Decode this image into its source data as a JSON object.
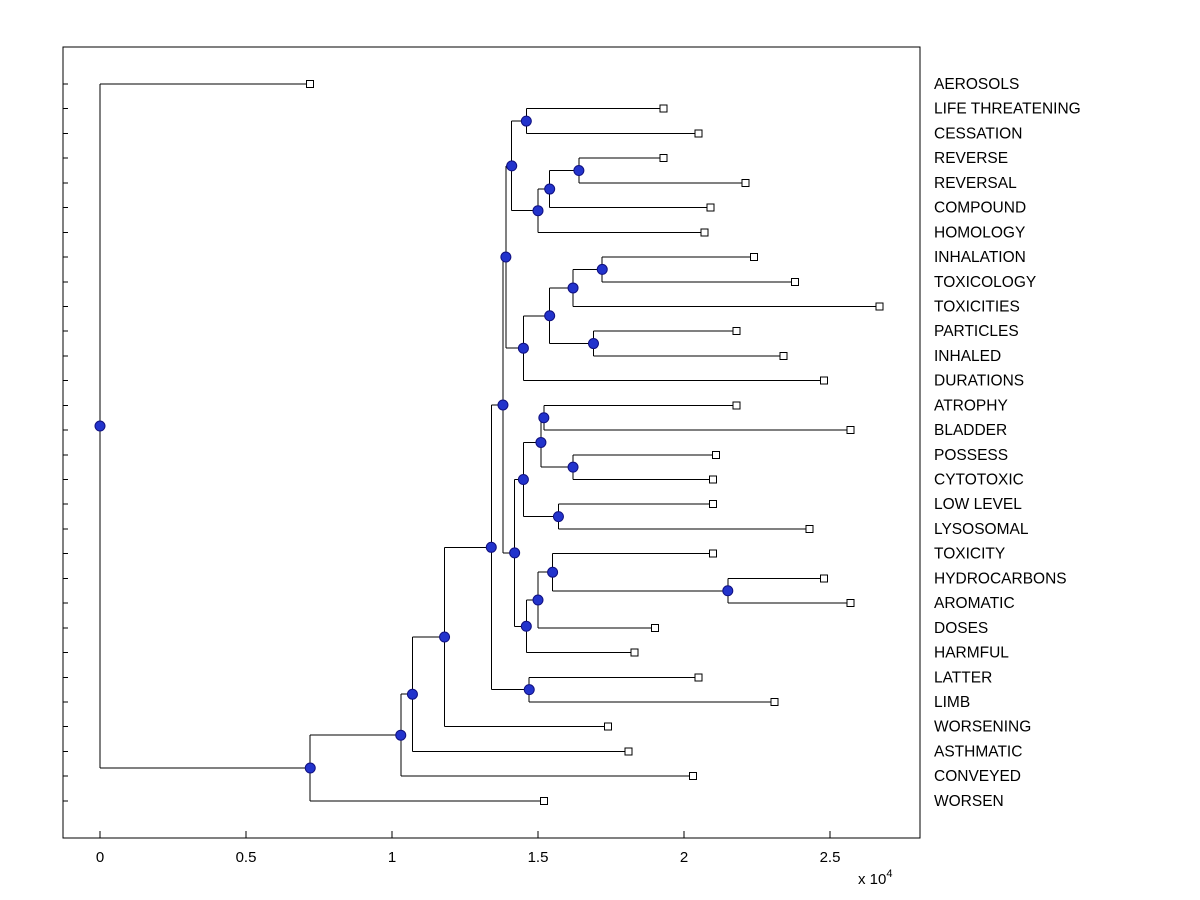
{
  "chart_data": {
    "type": "dendrogram",
    "title": "",
    "x_axis": {
      "tick_values": [
        0,
        0.5,
        1,
        1.5,
        2,
        2.5
      ],
      "tick_labels": [
        "0",
        "0.5",
        "1",
        "1.5",
        "2",
        "2.5"
      ],
      "multiplier_label": "x 10",
      "multiplier_exponent": "4",
      "range": [
        -0.13,
        2.81
      ]
    },
    "leaf_order": [
      "AEROSOLS",
      "LIFE THREATENING",
      "CESSATION",
      "REVERSE",
      "REVERSAL",
      "COMPOUND",
      "HOMOLOGY",
      "INHALATION",
      "TOXICOLOGY",
      "TOXICITIES",
      "PARTICLES",
      "INHALED",
      "DURATIONS",
      "ATROPHY",
      "BLADDER",
      "POSSESS",
      "CYTOTOXIC",
      "LOW LEVEL",
      "LYSOSOMAL",
      "TOXICITY",
      "HYDROCARBONS",
      "AROMATIC",
      "DOSES",
      "HARMFUL",
      "LATTER",
      "LIMB",
      "WORSENING",
      "ASTHMATIC",
      "CONVEYED",
      "WORSEN"
    ],
    "tree": {
      "x": 0.0,
      "children": [
        {
          "name": "AEROSOLS",
          "x": 0.72
        },
        {
          "x": 0.72,
          "children": [
            {
              "x": 1.03,
              "children": [
                {
                  "x": 1.07,
                  "children": [
                    {
                      "x": 1.18,
                      "children": [
                        {
                          "x": 1.34,
                          "children": [
                            {
                              "x": 1.38,
                              "children": [
                                {
                                  "x": 1.39,
                                  "children": [
                                    {
                                      "x": 1.41,
                                      "children": [
                                        {
                                          "x": 1.46,
                                          "children": [
                                            {
                                              "name": "LIFE THREATENING",
                                              "x": 1.93
                                            },
                                            {
                                              "name": "CESSATION",
                                              "x": 2.05
                                            }
                                          ]
                                        },
                                        {
                                          "x": 1.5,
                                          "children": [
                                            {
                                              "x": 1.54,
                                              "children": [
                                                {
                                                  "x": 1.64,
                                                  "children": [
                                                    {
                                                      "name": "REVERSE",
                                                      "x": 1.93
                                                    },
                                                    {
                                                      "name": "REVERSAL",
                                                      "x": 2.21
                                                    }
                                                  ]
                                                },
                                                {
                                                  "name": "COMPOUND",
                                                  "x": 2.09
                                                }
                                              ]
                                            },
                                            {
                                              "name": "HOMOLOGY",
                                              "x": 2.07
                                            }
                                          ]
                                        }
                                      ]
                                    },
                                    {
                                      "x": 1.45,
                                      "children": [
                                        {
                                          "x": 1.54,
                                          "children": [
                                            {
                                              "x": 1.62,
                                              "children": [
                                                {
                                                  "x": 1.72,
                                                  "children": [
                                                    {
                                                      "name": "INHALATION",
                                                      "x": 2.24
                                                    },
                                                    {
                                                      "name": "TOXICOLOGY",
                                                      "x": 2.38
                                                    }
                                                  ]
                                                },
                                                {
                                                  "name": "TOXICITIES",
                                                  "x": 2.67
                                                }
                                              ]
                                            },
                                            {
                                              "x": 1.69,
                                              "children": [
                                                {
                                                  "name": "PARTICLES",
                                                  "x": 2.18
                                                },
                                                {
                                                  "name": "INHALED",
                                                  "x": 2.34
                                                }
                                              ]
                                            }
                                          ]
                                        },
                                        {
                                          "name": "DURATIONS",
                                          "x": 2.48
                                        }
                                      ]
                                    }
                                  ]
                                },
                                {
                                  "x": 1.42,
                                  "children": [
                                    {
                                      "x": 1.45,
                                      "children": [
                                        {
                                          "x": 1.51,
                                          "children": [
                                            {
                                              "x": 1.52,
                                              "children": [
                                                {
                                                  "name": "ATROPHY",
                                                  "x": 2.18
                                                },
                                                {
                                                  "name": "BLADDER",
                                                  "x": 2.57
                                                }
                                              ]
                                            },
                                            {
                                              "x": 1.62,
                                              "children": [
                                                {
                                                  "name": "POSSESS",
                                                  "x": 2.11
                                                },
                                                {
                                                  "name": "CYTOTOXIC",
                                                  "x": 2.1
                                                }
                                              ]
                                            }
                                          ]
                                        },
                                        {
                                          "x": 1.57,
                                          "children": [
                                            {
                                              "name": "LOW LEVEL",
                                              "x": 2.1
                                            },
                                            {
                                              "name": "LYSOSOMAL",
                                              "x": 2.43
                                            }
                                          ]
                                        }
                                      ]
                                    },
                                    {
                                      "x": 1.46,
                                      "children": [
                                        {
                                          "x": 1.5,
                                          "children": [
                                            {
                                              "x": 1.55,
                                              "children": [
                                                {
                                                  "name": "TOXICITY",
                                                  "x": 2.1
                                                },
                                                {
                                                  "x": 2.15,
                                                  "children": [
                                                    {
                                                      "name": "HYDROCARBONS",
                                                      "x": 2.48
                                                    },
                                                    {
                                                      "name": "AROMATIC",
                                                      "x": 2.57
                                                    }
                                                  ]
                                                }
                                              ]
                                            },
                                            {
                                              "name": "DOSES",
                                              "x": 1.9
                                            }
                                          ]
                                        },
                                        {
                                          "name": "HARMFUL",
                                          "x": 1.83
                                        }
                                      ]
                                    }
                                  ]
                                }
                              ]
                            },
                            {
                              "x": 1.47,
                              "children": [
                                {
                                  "name": "LATTER",
                                  "x": 2.05
                                },
                                {
                                  "name": "LIMB",
                                  "x": 2.31
                                }
                              ]
                            }
                          ]
                        },
                        {
                          "name": "WORSENING",
                          "x": 1.74
                        }
                      ]
                    },
                    {
                      "name": "ASTHMATIC",
                      "x": 1.81
                    }
                  ]
                },
                {
                  "name": "CONVEYED",
                  "x": 2.03
                }
              ]
            },
            {
              "name": "WORSEN",
              "x": 1.52
            }
          ]
        }
      ]
    }
  },
  "style": {
    "node_color": "#2233cc",
    "node_edge_color": "#101080",
    "leaf_marker_fill": "#ffffff",
    "line_color": "#000000",
    "background": "#ffffff"
  }
}
